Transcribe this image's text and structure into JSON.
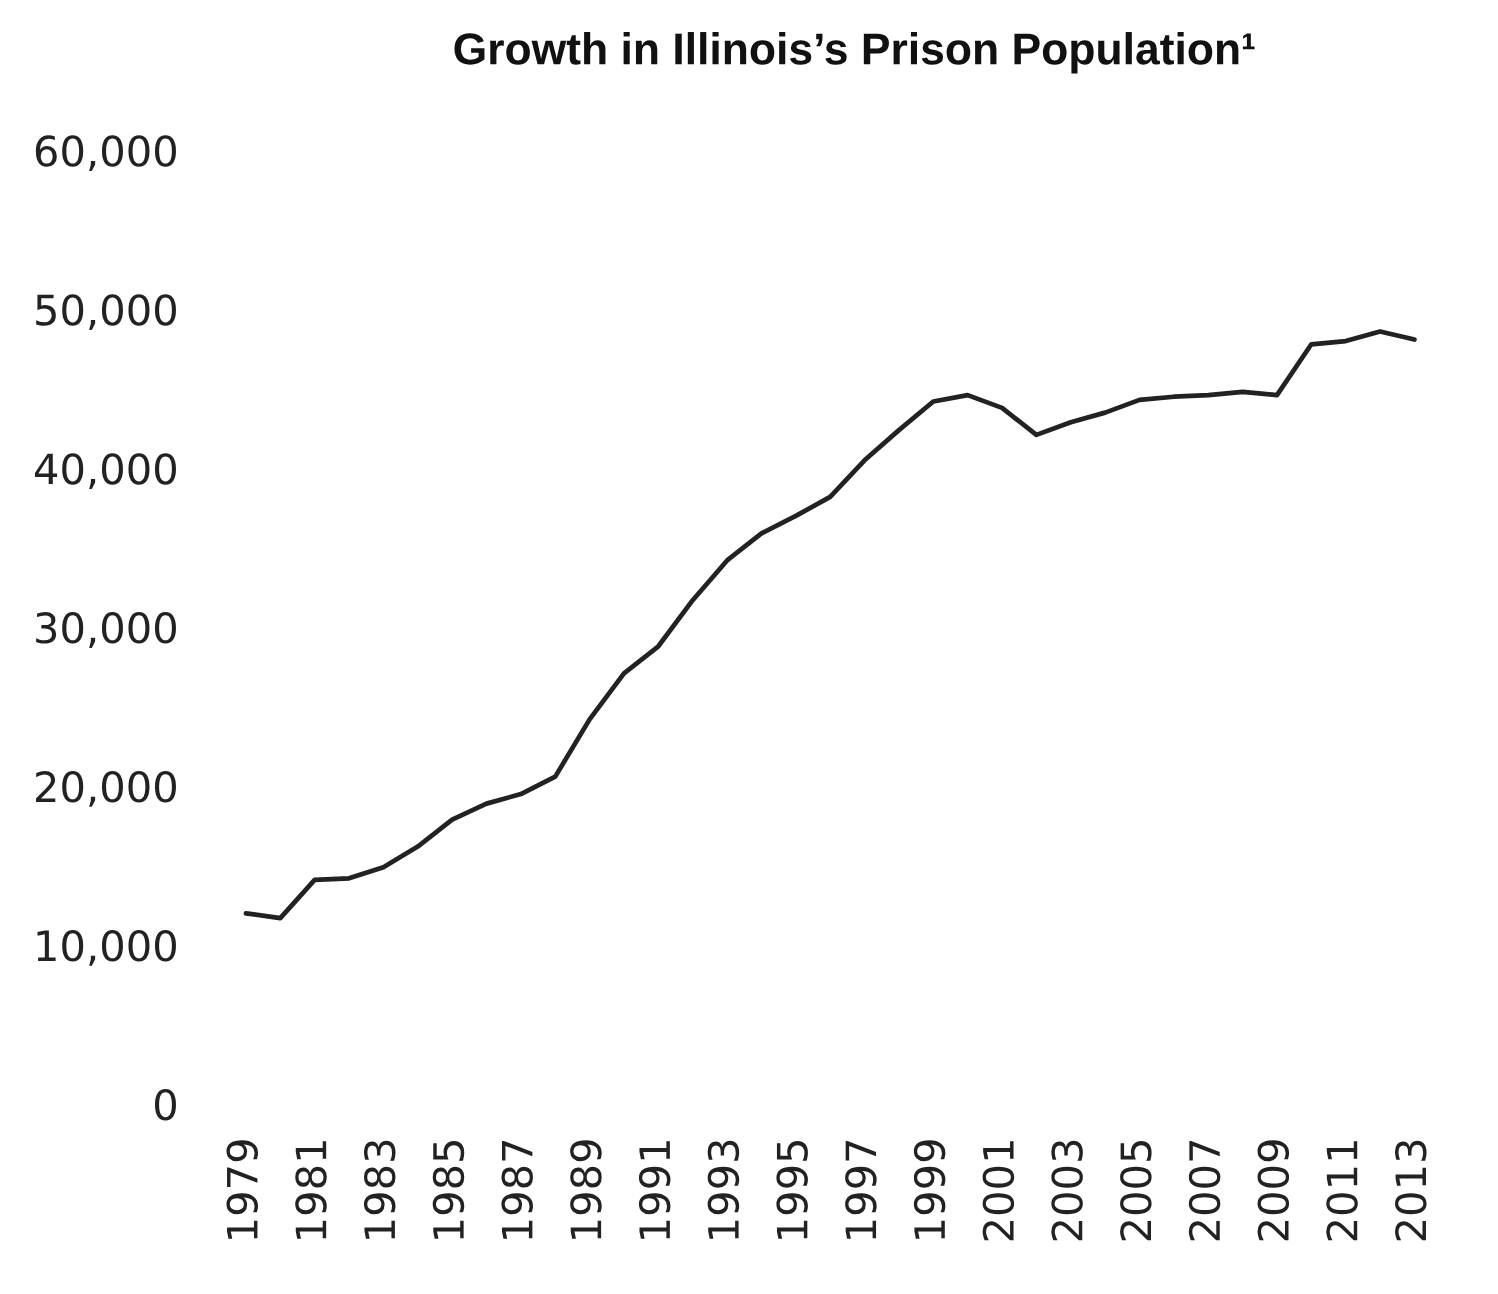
{
  "chart_data": {
    "type": "line",
    "title": "Growth in Illinois’s Prison Population¹",
    "categories": [
      "1979",
      null,
      "1981",
      null,
      "1983",
      null,
      "1985",
      null,
      "1987",
      null,
      "1989",
      null,
      "1991",
      null,
      "1993",
      null,
      "1995",
      null,
      "1997",
      null,
      "1999",
      null,
      "2001",
      null,
      "2003",
      null,
      "2005",
      null,
      "2007",
      null,
      "2009",
      null,
      "2011",
      null,
      "2013"
    ],
    "values": [
      12000,
      11700,
      14100,
      14200,
      14900,
      16200,
      17900,
      18900,
      19500,
      20600,
      24200,
      27100,
      28800,
      31700,
      34200,
      35900,
      37000,
      38200,
      40500,
      42400,
      44200,
      44600,
      43800,
      42100,
      42900,
      43500,
      44300,
      44500,
      44600,
      44800,
      44600,
      47800,
      48000,
      48600,
      48100
    ],
    "color": "#222222",
    "ylim": [
      0,
      60000
    ],
    "yticks": [
      0,
      {
        "value": 10000,
        "label": "10,000"
      },
      {
        "value": 20000,
        "label": "20,000"
      },
      {
        "value": 30000,
        "label": "30,000"
      },
      {
        "value": 40000,
        "label": "40,000"
      },
      {
        "value": 50000,
        "label": "50,000"
      },
      {
        "value": 60000,
        "label": "60,000"
      }
    ]
  }
}
